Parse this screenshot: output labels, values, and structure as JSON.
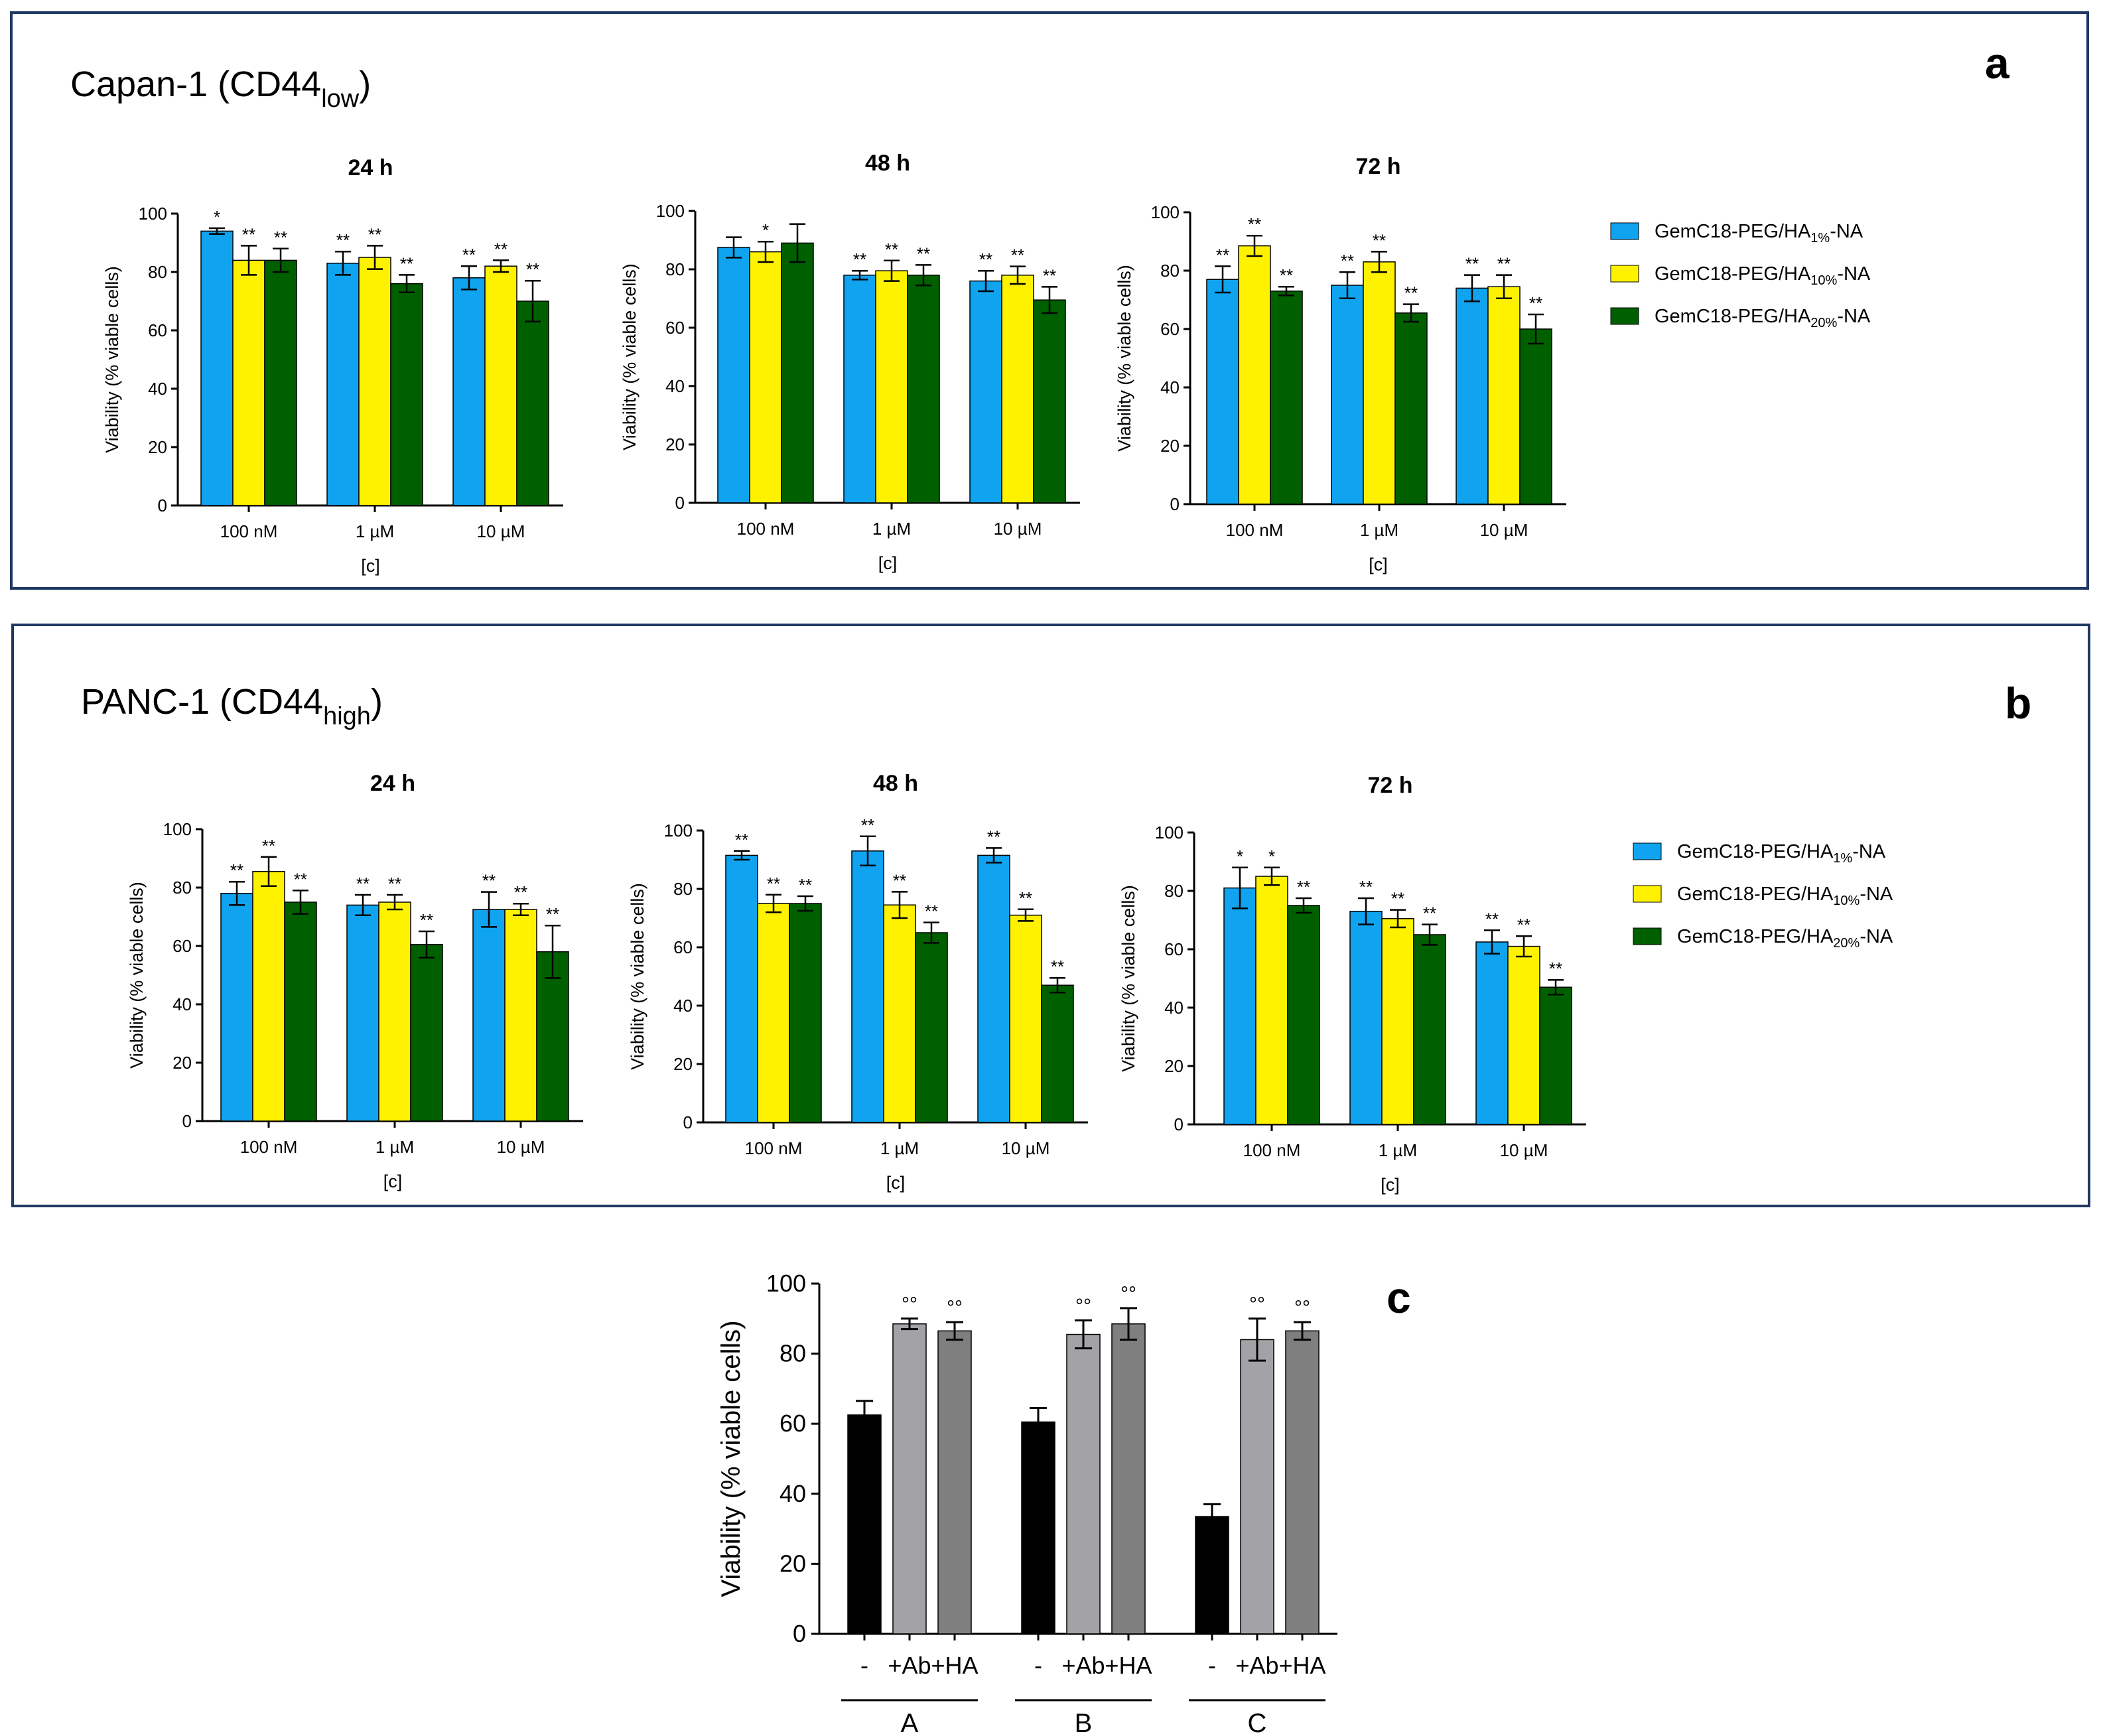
{
  "colors": {
    "ha1": "#0fa3f0",
    "ha10": "#fff200",
    "ha20": "#006000",
    "ctrl": "#000000",
    "ab": "#a3a3a7",
    "ha": "#7f7f7f",
    "frame": "#1f3864"
  },
  "panel_a": {
    "heading": "Capan-1 (CD44",
    "heading_sub": "low",
    "heading_close": ")",
    "letter": "a"
  },
  "panel_b": {
    "heading": "PANC-1 (CD44",
    "heading_sub": "high",
    "heading_close": ")",
    "letter": "b"
  },
  "panel_c": {
    "letter": "c"
  },
  "legend": [
    {
      "pre": "GemC18-PEG/HA",
      "sub": "1%",
      "post": "-NA",
      "color_key": "ha1"
    },
    {
      "pre": "GemC18-PEG/HA",
      "sub": "10%",
      "post": "-NA",
      "color_key": "ha10"
    },
    {
      "pre": "GemC18-PEG/HA",
      "sub": "20%",
      "post": "-NA",
      "color_key": "ha20"
    }
  ],
  "chart_data": [
    {
      "id": "a24",
      "type": "bar",
      "title": "24 h",
      "xlabel": "[c]",
      "ylabel": "Viability (% viable cells)",
      "ylim": [
        0,
        100
      ],
      "yticks": [
        "0",
        "20",
        "40",
        "60",
        "80",
        "100"
      ],
      "categories": [
        "100 nM",
        "1 µM",
        "10 µM"
      ],
      "series": [
        {
          "name": "GemC18-PEG/HA1%-NA",
          "values": [
            94,
            83,
            78
          ],
          "errors": [
            1,
            4,
            4
          ],
          "stars": [
            "*",
            "**",
            "**"
          ]
        },
        {
          "name": "GemC18-PEG/HA10%-NA",
          "values": [
            84,
            85,
            82
          ],
          "errors": [
            5,
            4,
            2
          ],
          "stars": [
            "**",
            "**",
            "**"
          ]
        },
        {
          "name": "GemC18-PEG/HA20%-NA",
          "values": [
            84,
            76,
            70
          ],
          "errors": [
            4,
            3,
            7
          ],
          "stars": [
            "**",
            "**",
            "**"
          ]
        }
      ]
    },
    {
      "id": "a48",
      "type": "bar",
      "title": "48 h",
      "xlabel": "[c]",
      "ylabel": "Viability (% viable cells)",
      "ylim": [
        0,
        100
      ],
      "yticks": [
        "0",
        "20",
        "40",
        "60",
        "80",
        "100"
      ],
      "categories": [
        "100 nM",
        "1 µM",
        "10 µM"
      ],
      "series": [
        {
          "name": "GemC18-PEG/HA1%-NA",
          "values": [
            87.5,
            78,
            76
          ],
          "errors": [
            3.5,
            1.5,
            3.5
          ],
          "stars": [
            "",
            "**",
            "**"
          ]
        },
        {
          "name": "GemC18-PEG/HA10%-NA",
          "values": [
            86,
            79.5,
            78
          ],
          "errors": [
            3.5,
            3.5,
            3
          ],
          "stars": [
            "*",
            "**",
            "**"
          ]
        },
        {
          "name": "GemC18-PEG/HA20%-NA",
          "values": [
            89,
            78,
            69.5
          ],
          "errors": [
            6.5,
            3.5,
            4.5
          ],
          "stars": [
            "",
            "**",
            "**"
          ]
        }
      ]
    },
    {
      "id": "a72",
      "type": "bar",
      "title": "72 h",
      "xlabel": "[c]",
      "ylabel": "Viability (% viable cells)",
      "ylim": [
        0,
        100
      ],
      "yticks": [
        "0",
        "20",
        "40",
        "60",
        "80",
        "100"
      ],
      "categories": [
        "100 nM",
        "1 µM",
        "10 µM"
      ],
      "series": [
        {
          "name": "GemC18-PEG/HA1%-NA",
          "values": [
            77,
            75,
            74
          ],
          "errors": [
            4.5,
            4.5,
            4.5
          ],
          "stars": [
            "**",
            "**",
            "**"
          ]
        },
        {
          "name": "GemC18-PEG/HA10%-NA",
          "values": [
            88.5,
            83,
            74.5
          ],
          "errors": [
            3.5,
            3.5,
            4
          ],
          "stars": [
            "**",
            "**",
            "**"
          ]
        },
        {
          "name": "GemC18-PEG/HA20%-NA",
          "values": [
            73,
            65.5,
            60
          ],
          "errors": [
            1.5,
            3,
            5
          ],
          "stars": [
            "**",
            "**",
            "**"
          ]
        }
      ]
    },
    {
      "id": "b24",
      "type": "bar",
      "title": "24 h",
      "xlabel": "[c]",
      "ylabel": "Viability (% viable cells)",
      "ylim": [
        0,
        100
      ],
      "yticks": [
        "0",
        "20",
        "40",
        "60",
        "80",
        "100"
      ],
      "categories": [
        "100 nM",
        "1 µM",
        "10 µM"
      ],
      "series": [
        {
          "name": "GemC18-PEG/HA1%-NA",
          "values": [
            78,
            74,
            72.5
          ],
          "errors": [
            4,
            3.5,
            6
          ],
          "stars": [
            "**",
            "**",
            "**"
          ]
        },
        {
          "name": "GemC18-PEG/HA10%-NA",
          "values": [
            85.5,
            75,
            72.5
          ],
          "errors": [
            5,
            2.5,
            2
          ],
          "stars": [
            "**",
            "**",
            "**"
          ]
        },
        {
          "name": "GemC18-PEG/HA20%-NA",
          "values": [
            75,
            60.5,
            58
          ],
          "errors": [
            4,
            4.5,
            9
          ],
          "stars": [
            "**",
            "**",
            "**"
          ]
        }
      ]
    },
    {
      "id": "b48",
      "type": "bar",
      "title": "48 h",
      "xlabel": "[c]",
      "ylabel": "Viability (% viable cells)",
      "ylim": [
        0,
        100
      ],
      "yticks": [
        "0",
        "20",
        "40",
        "60",
        "80",
        "100"
      ],
      "categories": [
        "100 nM",
        "1 µM",
        "10 µM"
      ],
      "series": [
        {
          "name": "GemC18-PEG/HA1%-NA",
          "values": [
            91.5,
            93,
            91.5
          ],
          "errors": [
            1.5,
            5,
            2.5
          ],
          "stars": [
            "**",
            "**",
            "**"
          ]
        },
        {
          "name": "GemC18-PEG/HA10%-NA",
          "values": [
            75,
            74.5,
            71
          ],
          "errors": [
            3,
            4.5,
            2
          ],
          "stars": [
            "**",
            "**",
            "**"
          ]
        },
        {
          "name": "GemC18-PEG/HA20%-NA",
          "values": [
            75,
            65,
            47
          ],
          "errors": [
            2.5,
            3.5,
            2.5
          ],
          "stars": [
            "**",
            "**",
            "**"
          ]
        }
      ]
    },
    {
      "id": "b72",
      "type": "bar",
      "title": "72 h",
      "xlabel": "[c]",
      "ylabel": "Viability (% viable cells)",
      "ylim": [
        0,
        100
      ],
      "yticks": [
        "0",
        "20",
        "40",
        "60",
        "80",
        "100"
      ],
      "categories": [
        "100 nM",
        "1 µM",
        "10 µM"
      ],
      "series": [
        {
          "name": "GemC18-PEG/HA1%-NA",
          "values": [
            81,
            73,
            62.5
          ],
          "errors": [
            7,
            4.5,
            4
          ],
          "stars": [
            "*",
            "**",
            "**"
          ]
        },
        {
          "name": "GemC18-PEG/HA10%-NA",
          "values": [
            85,
            70.5,
            61
          ],
          "errors": [
            3,
            3,
            3.5
          ],
          "stars": [
            "*",
            "**",
            "**"
          ]
        },
        {
          "name": "GemC18-PEG/HA20%-NA",
          "values": [
            75,
            65,
            47
          ],
          "errors": [
            2.5,
            3.5,
            2.5
          ],
          "stars": [
            "**",
            "**",
            "**"
          ]
        }
      ]
    },
    {
      "id": "c",
      "type": "bar",
      "title": "",
      "xlabel": "",
      "ylabel": "Viability (% viable cells)",
      "ylim": [
        0,
        100
      ],
      "yticks": [
        "0",
        "20",
        "40",
        "60",
        "80",
        "100"
      ],
      "groups": [
        "A",
        "B",
        "C"
      ],
      "bar_labels": [
        "-",
        "+Ab",
        "+HA"
      ],
      "values": [
        [
          62.5,
          88.5,
          86.5
        ],
        [
          60.5,
          85.5,
          88.5
        ],
        [
          33.5,
          84,
          86.5
        ]
      ],
      "errors": [
        [
          4,
          1.5,
          2.5
        ],
        [
          4,
          4,
          4.5
        ],
        [
          3.5,
          6,
          2.5
        ]
      ],
      "marks": [
        [
          "",
          "°°",
          "°°"
        ],
        [
          "",
          "°°",
          "°°"
        ],
        [
          "",
          "°°",
          "°°"
        ]
      ]
    }
  ]
}
